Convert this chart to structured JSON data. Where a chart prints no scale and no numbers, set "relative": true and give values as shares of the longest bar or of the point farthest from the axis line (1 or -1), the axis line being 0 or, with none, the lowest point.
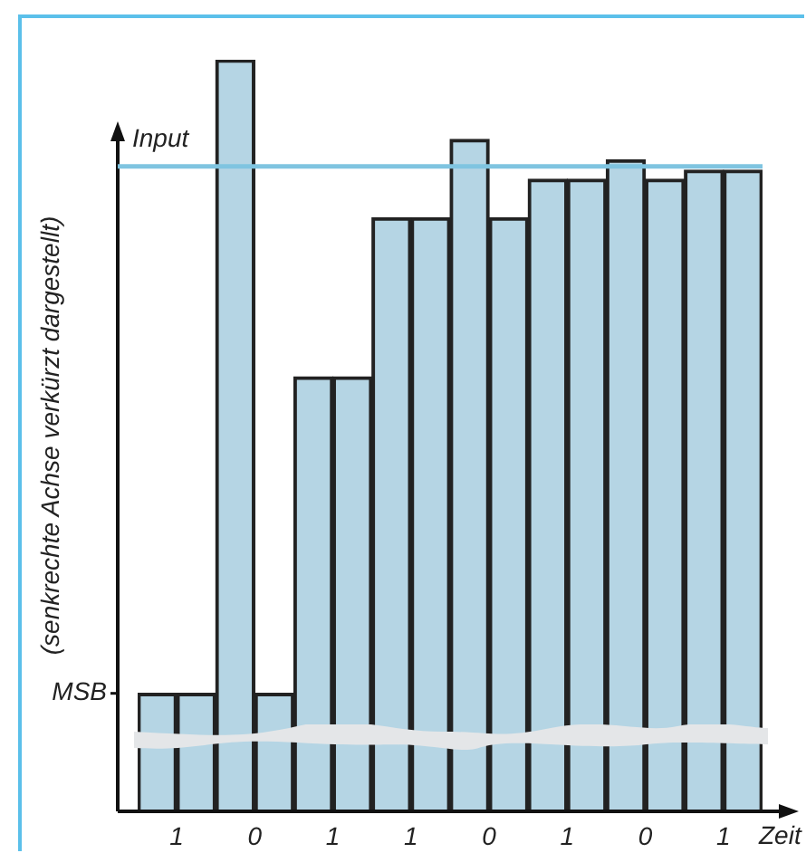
{
  "chart_data": {
    "type": "bar",
    "relative": true,
    "xlabel": "Zeit",
    "ylabel": "(senkrechte Achse verkürzt dargestellt)",
    "categories": [
      "1",
      "0",
      "1",
      "1",
      "0",
      "1",
      "0",
      "1"
    ],
    "series": [
      {
        "color": "#b5d5e4",
        "values": [
          0.157,
          1,
          0.578,
          0.79,
          0.894,
          0.841,
          0.867,
          0.853
        ]
      },
      {
        "color": "#b5d5e4",
        "values": [
          0.157,
          0.157,
          0.578,
          0.79,
          0.79,
          0.841,
          0.841,
          0.853
        ]
      }
    ],
    "ref_lines": [
      {
        "axis": "y",
        "value": 0.858,
        "label": "Input",
        "color": "#7fc4e0"
      }
    ],
    "annotations": [
      "MSB"
    ],
    "grid": false,
    "legend": false,
    "tick_labels": "x"
  }
}
